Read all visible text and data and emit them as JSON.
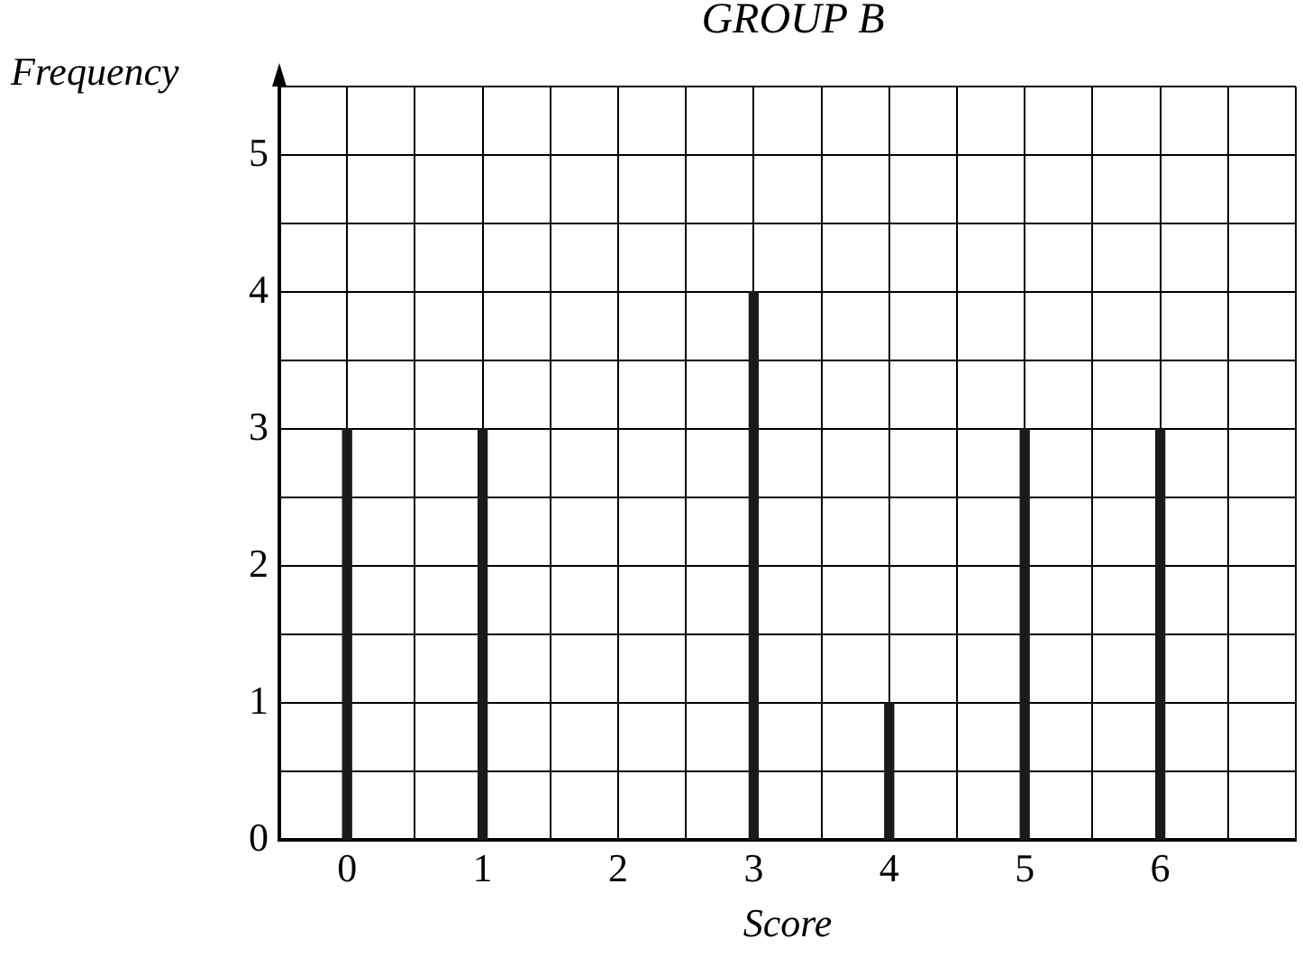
{
  "chart_data": {
    "type": "bar",
    "title": "GROUP B",
    "xlabel": "Score",
    "ylabel": "Frequency",
    "x": [
      0,
      1,
      2,
      3,
      4,
      5,
      6
    ],
    "values": [
      3,
      3,
      0,
      4,
      1,
      3,
      3
    ],
    "color": "#1a1a1a",
    "xlim": [
      -0.5,
      7
    ],
    "xticks": [
      {
        "value": -0.5,
        "label": null
      },
      0,
      {
        "value": 0.5,
        "label": null
      },
      1,
      {
        "value": 1.5,
        "label": null
      },
      2,
      {
        "value": 2.5,
        "label": null
      },
      3,
      {
        "value": 3.5,
        "label": null
      },
      4,
      {
        "value": 4.5,
        "label": null
      },
      5,
      {
        "value": 5.5,
        "label": null
      },
      6,
      {
        "value": 6.5,
        "label": null
      },
      {
        "value": 7,
        "label": null
      }
    ],
    "ylim": [
      0,
      5.5
    ],
    "yticks": [
      0,
      {
        "value": 0.5,
        "label": null
      },
      1,
      {
        "value": 1.5,
        "label": null
      },
      2,
      {
        "value": 2.5,
        "label": null
      },
      3,
      {
        "value": 3.5,
        "label": null
      },
      4,
      {
        "value": 4.5,
        "label": null
      },
      5,
      {
        "value": 5.5,
        "label": null
      }
    ],
    "grid": true,
    "legend": false
  }
}
